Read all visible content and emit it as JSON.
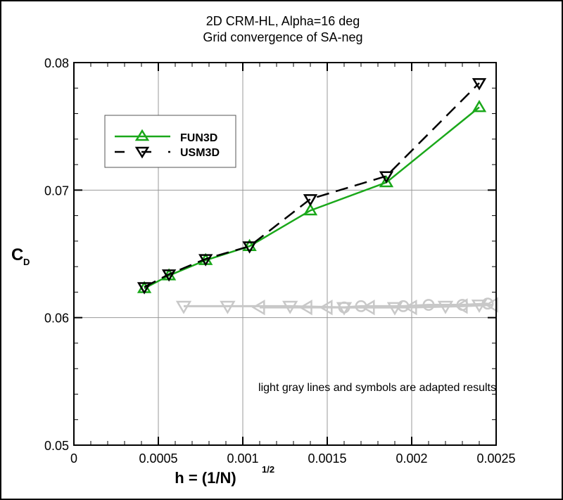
{
  "chart_data": {
    "type": "line",
    "title": "2D CRM-HL, Alpha=16 deg",
    "subtitle": "Grid convergence of SA-neg",
    "xlabel": "h = (1/N)",
    "xlabel_sup": "1/2",
    "ylabel": "C",
    "ylabel_sub": "D",
    "xlim": [
      0,
      0.0025
    ],
    "ylim": [
      0.05,
      0.08
    ],
    "xticks": [
      "0",
      "0.0005",
      "0.001",
      "0.0015",
      "0.002",
      "0.0025"
    ],
    "yticks": [
      "0.05",
      "0.06",
      "0.07",
      "0.08"
    ],
    "grid": true,
    "legend_position": "top-left",
    "annotation": "light gray lines and symbols are adapted results",
    "series": [
      {
        "name": "FUN3D",
        "color": "#1aa81a",
        "marker": "triangle-up",
        "dash": "solid",
        "x": [
          0.000417,
          0.000563,
          0.00078,
          0.00104,
          0.0014,
          0.00185,
          0.0024
        ],
        "y": [
          0.0623,
          0.0633,
          0.0645,
          0.0656,
          0.0684,
          0.0706,
          0.0765
        ]
      },
      {
        "name": "USM3D",
        "color": "#000000",
        "marker": "triangle-down",
        "dash": "dashed",
        "x": [
          0.000417,
          0.000563,
          0.00078,
          0.00104,
          0.0014,
          0.00185,
          0.0024
        ],
        "y": [
          0.0624,
          0.0634,
          0.0646,
          0.0656,
          0.0693,
          0.0711,
          0.0784
        ]
      }
    ],
    "adapted_series": [
      {
        "color": "#c8c8c8",
        "marker": "triangle-down",
        "x": [
          0.00065,
          0.00091,
          0.00128,
          0.0016,
          0.0019,
          0.0022,
          0.0024
        ],
        "y": [
          0.0609,
          0.0609,
          0.0609,
          0.0608,
          0.0608,
          0.0609,
          0.061
        ]
      },
      {
        "color": "#c8c8c8",
        "marker": "triangle-left",
        "x": [
          0.0011,
          0.00138,
          0.0015,
          0.00175,
          0.002,
          0.0023,
          0.00248
        ],
        "y": [
          0.0608,
          0.0608,
          0.0608,
          0.0608,
          0.0608,
          0.0609,
          0.061
        ]
      },
      {
        "color": "#c8c8c8",
        "marker": "circle",
        "x": [
          0.0016,
          0.0017,
          0.00195,
          0.0021,
          0.0023,
          0.00245
        ],
        "y": [
          0.0608,
          0.0609,
          0.0609,
          0.061,
          0.061,
          0.0611
        ]
      }
    ]
  }
}
